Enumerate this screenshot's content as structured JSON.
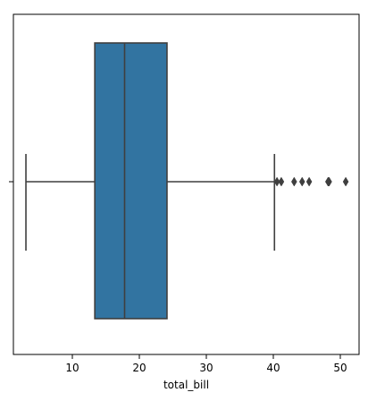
{
  "chart_data": {
    "type": "box",
    "orientation": "horizontal",
    "xlabel": "total_bill",
    "ylabel": "",
    "xlim": [
      1.2,
      52.8
    ],
    "xticks": [
      10,
      20,
      30,
      40,
      50
    ],
    "xtick_labels": [
      "10",
      "20",
      "30",
      "40",
      "50"
    ],
    "grid": false,
    "series": [
      {
        "whisker_low": 3.07,
        "q1": 13.35,
        "median": 17.8,
        "q3": 24.13,
        "whisker_high": 40.17,
        "outliers": [
          40.55,
          41.19,
          43.11,
          44.3,
          45.35,
          48.17,
          48.27,
          48.33,
          50.81
        ],
        "fill_color": "#3274a1",
        "line_color": "#3f3f3f"
      }
    ]
  }
}
